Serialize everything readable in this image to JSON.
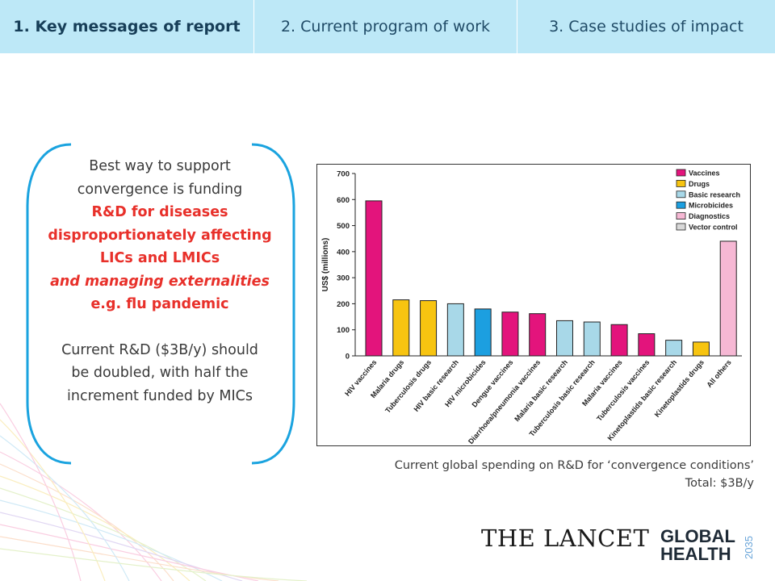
{
  "tabs": [
    {
      "label": "1. Key messages of report",
      "active": true
    },
    {
      "label": "2. Current program of work",
      "active": false
    },
    {
      "label": "3. Case studies of impact",
      "active": false
    }
  ],
  "message": {
    "line1": "Best way to support",
    "line2": "convergence is funding",
    "red1": "R&D for diseases",
    "red2": "disproportionately affecting",
    "red3": "LICs and LMICs",
    "red4": "and managing externalities",
    "red5": "e.g. flu pandemic",
    "para2_line1": "Current R&D ($3B/y) should",
    "para2_line2": "be doubled, with half the",
    "para2_line3": "increment funded by MICs"
  },
  "caption": {
    "line1": "Current global spending on R&D for ‘convergence conditions’",
    "line2": "Total: $3B/y"
  },
  "logos": {
    "lancet": "THE LANCET",
    "gh_line1": "GLOBAL",
    "gh_line2": "HEALTH",
    "gh_year": "2035"
  },
  "colors": {
    "tab_bg": "#bde8f7",
    "panel_accent": "#1aa3df",
    "Vaccines": "#e3147c",
    "Drugs": "#f7c410",
    "Basic research": "#a8d8e8",
    "Microbicides": "#1c9fe0",
    "Diagnostics": "#f6b8d4",
    "Vector control": "#d9d9d9"
  },
  "chart_data": {
    "type": "bar",
    "title": "",
    "xlabel": "",
    "ylabel": "US$ (millions)",
    "ylim": [
      0,
      700
    ],
    "yticks": [
      0,
      100,
      200,
      300,
      400,
      500,
      600,
      700
    ],
    "grid": false,
    "legend_position": "top-right",
    "legend": [
      "Vaccines",
      "Drugs",
      "Basic research",
      "Microbicides",
      "Diagnostics",
      "Vector control"
    ],
    "categories": [
      "HIV vaccines",
      "Malaria drugs",
      "Tuberculosis drugs",
      "HIV basic research",
      "HIV microbicides",
      "Dengue vaccines",
      "Diarrhoea/pneumonia vaccines",
      "Malaria basic research",
      "Tuberculosis basic research",
      "Malaria vaccines",
      "Tuberculosis vaccines",
      "Kinetoplastids basic research",
      "Kinetoplastids drugs",
      "All others"
    ],
    "values": [
      595,
      215,
      212,
      200,
      180,
      168,
      162,
      135,
      130,
      120,
      85,
      60,
      53,
      440
    ],
    "bar_types": [
      "Vaccines",
      "Drugs",
      "Drugs",
      "Basic research",
      "Microbicides",
      "Vaccines",
      "Vaccines",
      "Basic research",
      "Basic research",
      "Vaccines",
      "Vaccines",
      "Basic research",
      "Drugs",
      "Diagnostics"
    ]
  }
}
